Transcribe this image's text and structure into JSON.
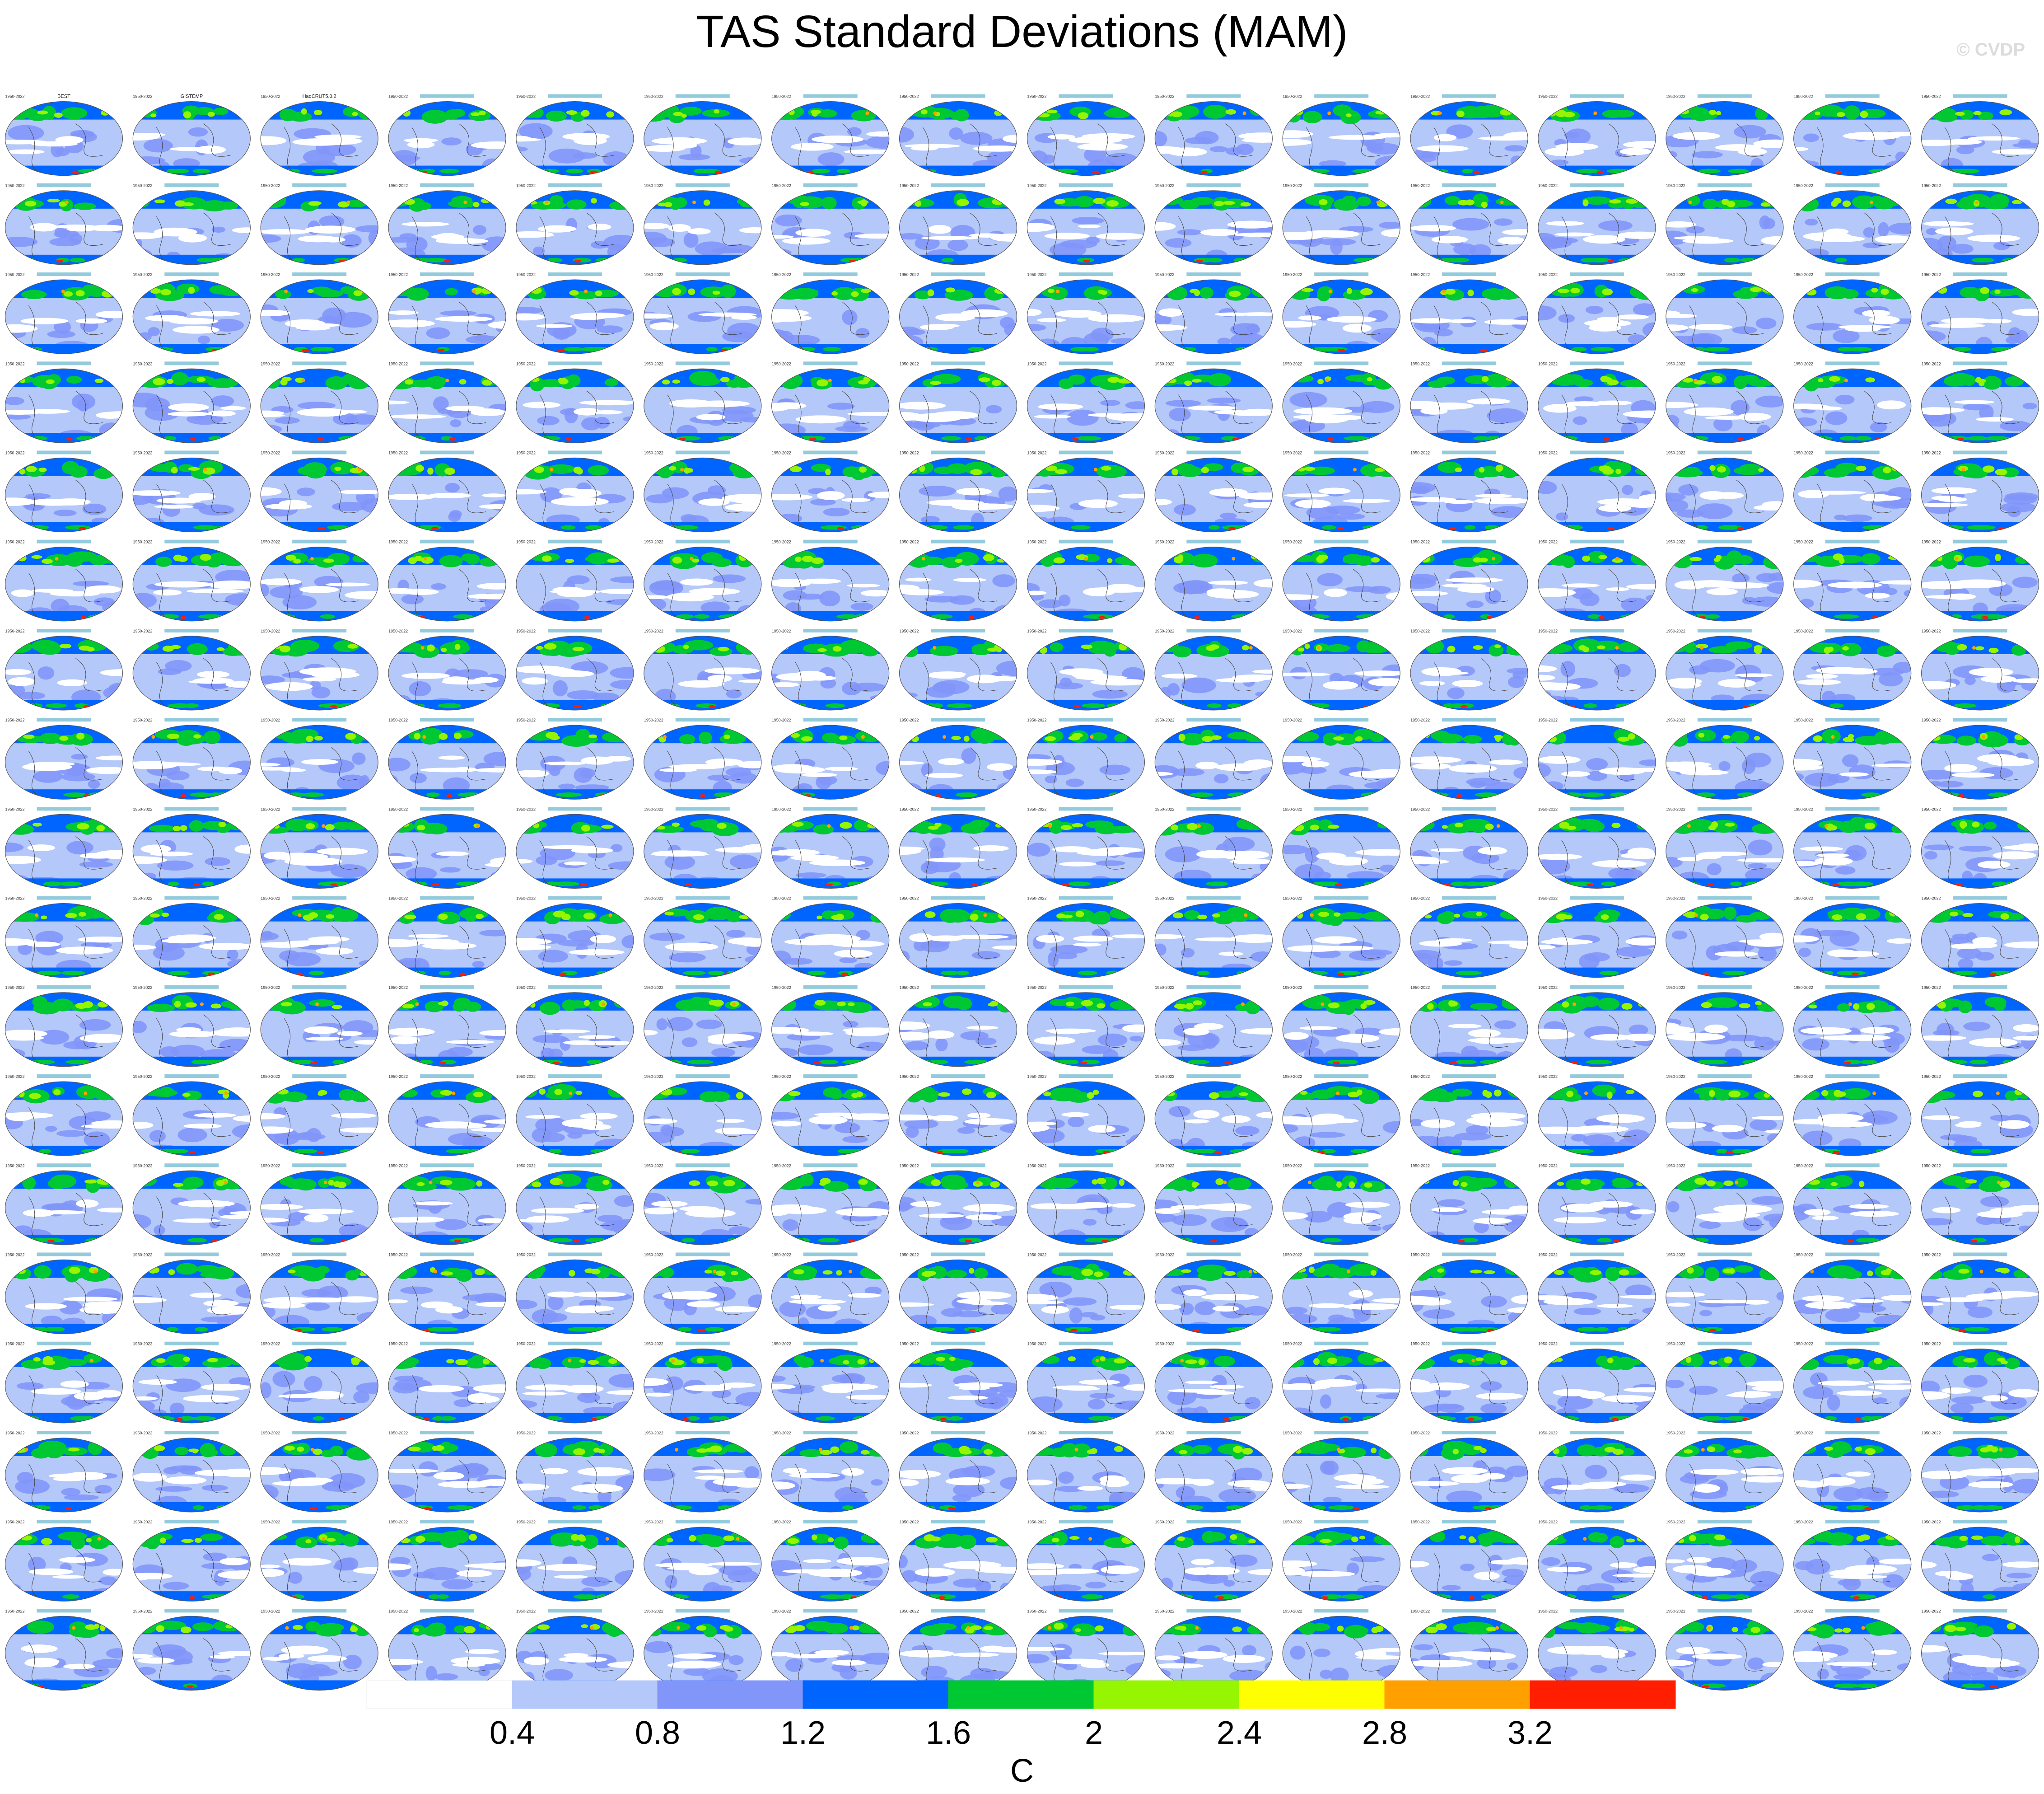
{
  "figure": {
    "title": "TAS Standard Deviations (MAM)",
    "watermark": "© CVDP"
  },
  "chart_data": {
    "type": "heatmap",
    "title": "TAS Standard Deviations (MAM)",
    "description_variable": "TAS",
    "season": "MAM",
    "panel_grid": {
      "rows": 18,
      "cols": 16,
      "count": 288
    },
    "panel_period_example": "1950-2022",
    "observation_panels": [
      "BEST",
      "GISTEMP",
      "HadCRUT5.0.2"
    ],
    "colorbar": {
      "units": "C",
      "tick_labels": [
        "0.4",
        "0.8",
        "1.2",
        "1.6",
        "2",
        "2.4",
        "2.8",
        "3.2"
      ],
      "colors": [
        "#ffffff",
        "#b4c8fa",
        "#8296fa",
        "#0064ff",
        "#00c832",
        "#96f500",
        "#ffff00",
        "#ffa000",
        "#ff1e00"
      ]
    }
  }
}
